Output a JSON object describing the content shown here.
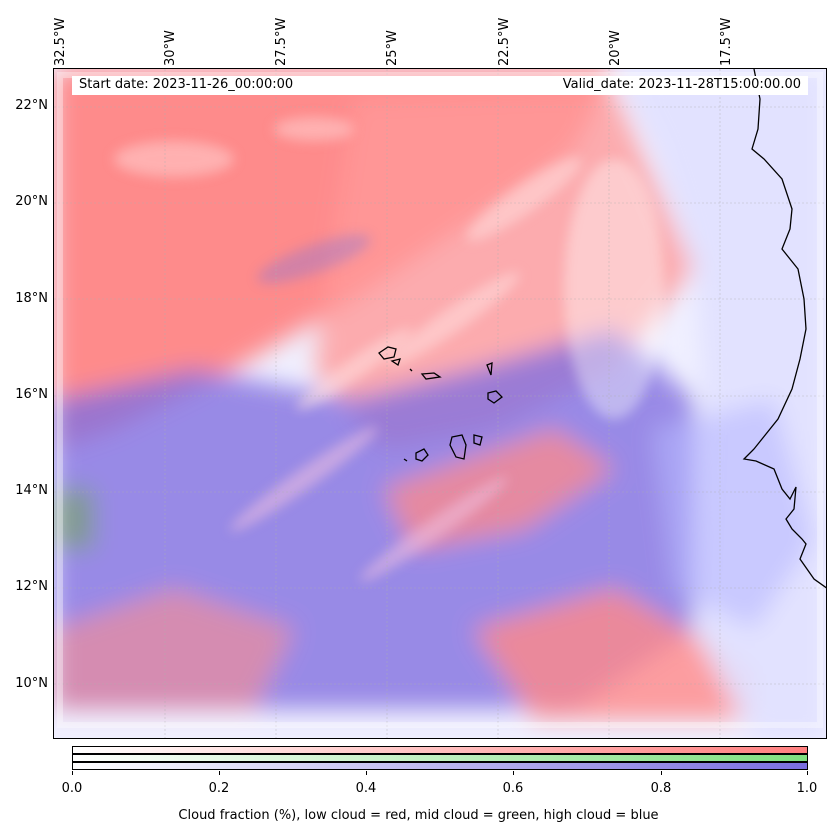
{
  "map": {
    "header": {
      "start_date": "Start date: 2023-11-26_00:00:00",
      "valid_date": "Valid_date: 2023-11-28T15:00:00.00"
    },
    "longitude_labels": [
      "32.5°W",
      "30°W",
      "27.5°W",
      "25°W",
      "22.5°W",
      "20°W",
      "17.5°W"
    ],
    "latitude_labels": [
      "22°N",
      "20°N",
      "18°N",
      "16°N",
      "14°N",
      "12°N",
      "10°N"
    ],
    "colors": {
      "low_cloud": "#ff8080",
      "mid_cloud": "#80e880",
      "high_cloud": "#7a70e0",
      "coastline": "#000000"
    },
    "features": [
      "coastline-west-africa",
      "cape-verde-islands"
    ]
  },
  "colorbar": {
    "ticks": [
      "0.0",
      "0.2",
      "0.4",
      "0.6",
      "0.8",
      "1.0"
    ],
    "label": "Cloud fraction (%), low cloud = red, mid cloud = green, high cloud = blue",
    "range": [
      0.0,
      1.0
    ]
  }
}
